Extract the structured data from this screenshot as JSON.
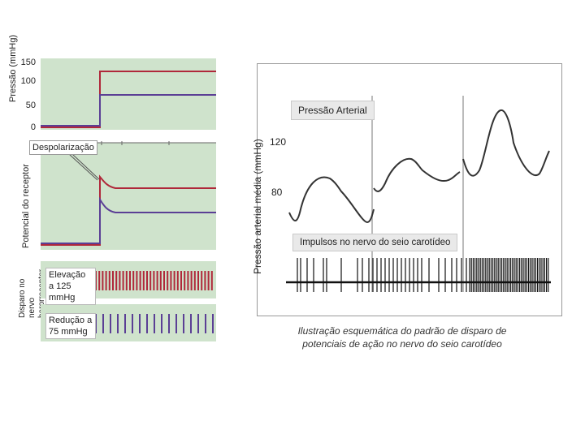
{
  "left_figure": {
    "pressure_axis_label": "Pressão (mmHg)",
    "pressure_ticks": [
      "150",
      "100",
      "50",
      "0"
    ],
    "receptor_axis_label": "Potencial do receptor",
    "depolarization_label": "Despolarização",
    "firing_axis_label": "Disparo no nervo barorreceptor",
    "rise_label": "Elevação a 125 mmHg",
    "drop_label": "Redução a 75 mmHg",
    "colors": {
      "panel": "#cfe3cc",
      "elevation": "#b0283a",
      "reduction": "#5b3f95"
    }
  },
  "right_figure": {
    "y_axis_label": "Pressão arterial média (mmHg)",
    "y_ticks": [
      "120",
      "80"
    ],
    "pressure_label": "Pressão Arterial",
    "impulses_label": "Impulsos no nervo do seio carotídeo"
  },
  "caption": "Ilustração esquemática do padrão de disparo de potenciais de ação no nervo do seio carotídeo"
}
